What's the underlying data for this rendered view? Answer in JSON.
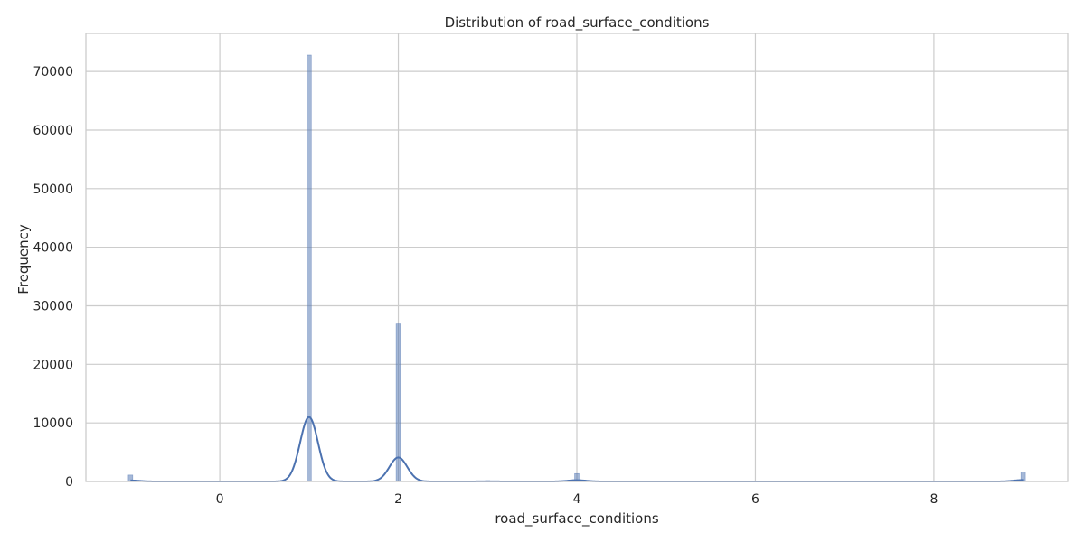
{
  "chart_data": {
    "type": "bar",
    "title": "Distribution of road_surface_conditions",
    "xlabel": "road_surface_conditions",
    "ylabel": "Frequency",
    "xlim": [
      -1.5,
      9.5
    ],
    "ylim": [
      0,
      76500
    ],
    "xticks": [
      0,
      2,
      4,
      6,
      8
    ],
    "yticks": [
      0,
      10000,
      20000,
      30000,
      40000,
      50000,
      60000,
      70000
    ],
    "grid": true,
    "bin_width": 0.05,
    "bar_color": "#4c72b0",
    "bar_opacity": 0.5,
    "bars": [
      {
        "x": -1,
        "count": 1100
      },
      {
        "x": 1,
        "count": 72800
      },
      {
        "x": 2,
        "count": 26900
      },
      {
        "x": 3,
        "count": 150
      },
      {
        "x": 4,
        "count": 1350
      },
      {
        "x": 9,
        "count": 1600
      }
    ],
    "kde": {
      "color": "#4c72b0",
      "bandwidth": 0.1,
      "peaks": [
        {
          "x": -1,
          "height": 170
        },
        {
          "x": 1,
          "height": 11000
        },
        {
          "x": 2,
          "height": 4100
        },
        {
          "x": 3,
          "height": 25
        },
        {
          "x": 4,
          "height": 220
        },
        {
          "x": 9,
          "height": 250
        }
      ]
    }
  }
}
